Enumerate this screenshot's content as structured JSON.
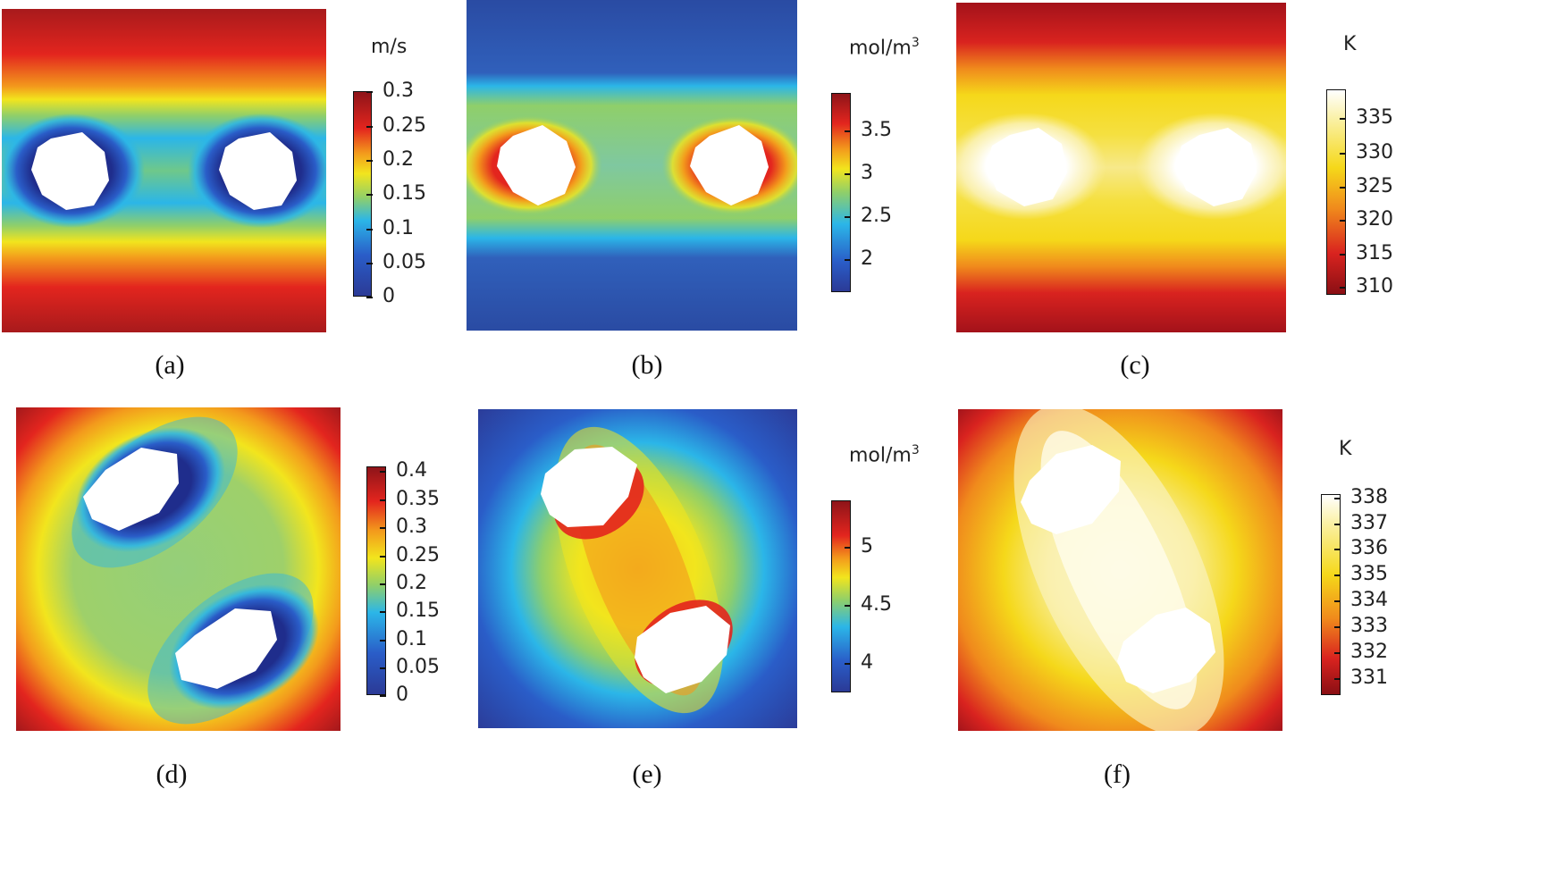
{
  "panels": [
    {
      "caption": "(a)",
      "unit_main": "m/s",
      "unit_sup": "",
      "ticks": [
        "0.3",
        "0.25",
        "0.2",
        "0.15",
        "0.1",
        "0.05",
        "0"
      ],
      "colormap": "jet"
    },
    {
      "caption": "(b)",
      "unit_main": "mol/m",
      "unit_sup": "3",
      "ticks": [
        "3.5",
        "3",
        "2.5",
        "2"
      ],
      "colormap": "jet"
    },
    {
      "caption": "(c)",
      "unit_main": "K",
      "unit_sup": "",
      "ticks": [
        "335",
        "330",
        "325",
        "320",
        "315",
        "310"
      ],
      "colormap": "heat"
    },
    {
      "caption": "(d)",
      "unit_main": "",
      "unit_sup": "",
      "ticks": [
        "0.4",
        "0.35",
        "0.3",
        "0.25",
        "0.2",
        "0.15",
        "0.1",
        "0.05",
        "0"
      ],
      "colormap": "jet"
    },
    {
      "caption": "(e)",
      "unit_main": "mol/m",
      "unit_sup": "3",
      "ticks": [
        "5",
        "4.5",
        "4"
      ],
      "colormap": "jet"
    },
    {
      "caption": "(f)",
      "unit_main": "K",
      "unit_sup": "",
      "ticks": [
        "338",
        "337",
        "336",
        "335",
        "334",
        "333",
        "332",
        "331"
      ],
      "colormap": "heat"
    }
  ],
  "colors": {
    "jet": [
      "#2b3a96",
      "#2a5dc8",
      "#2bb6e8",
      "#8fcf6a",
      "#f2e51d",
      "#f39a1c",
      "#e3251e",
      "#8e1419"
    ],
    "heat": [
      "#8a0f14",
      "#d9231f",
      "#f08a1c",
      "#f5d81a",
      "#faf0a0",
      "#ffffff"
    ]
  }
}
